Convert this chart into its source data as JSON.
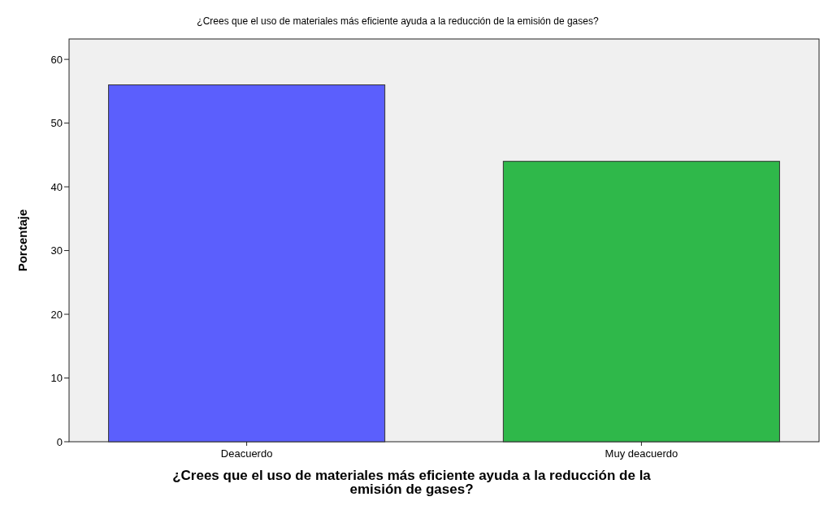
{
  "chart_data": {
    "type": "bar",
    "title": "¿Crees que el uso de materiales más eficiente ayuda a la reducción de la emisión de gases?",
    "xlabel": "¿Crees que el uso de materiales más eficiente ayuda a la reducción de la emisión de gases?",
    "ylabel": "Porcentaje",
    "categories": [
      "Deacuerdo",
      "Muy deacuerdo"
    ],
    "values": [
      56,
      44
    ],
    "colors": [
      "#5b5ffd",
      "#2fb84a"
    ],
    "ylim": [
      0,
      63.2
    ],
    "yticks": [
      0,
      10,
      20,
      30,
      40,
      50,
      60
    ],
    "grid": false
  }
}
